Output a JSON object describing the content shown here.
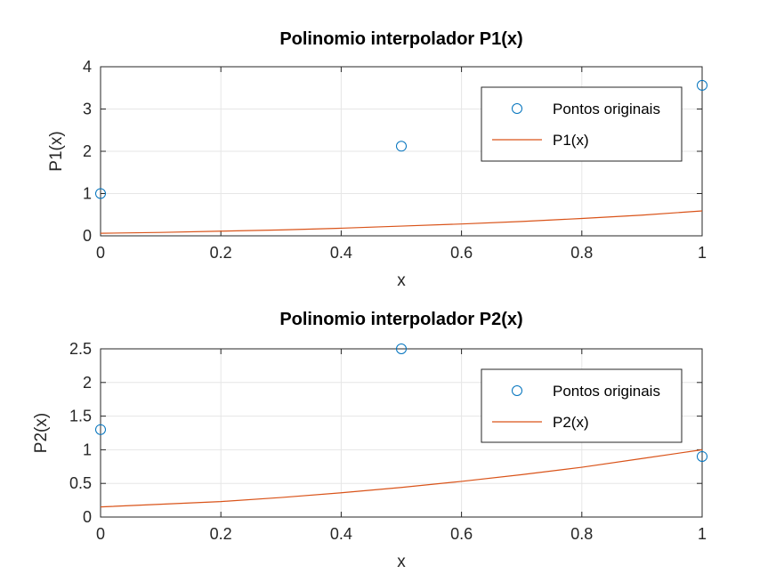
{
  "chart_data": [
    {
      "type": "line",
      "title": "Polinomio interpolador P1(x)",
      "xlabel": "x",
      "ylabel": "P1(x)",
      "xlim": [
        0,
        1
      ],
      "ylim": [
        0,
        4
      ],
      "xticks": [
        0,
        0.2,
        0.4,
        0.6,
        0.8,
        1
      ],
      "xtick_labels": [
        "0",
        "0.2",
        "0.4",
        "0.6",
        "0.8",
        "1"
      ],
      "yticks": [
        0,
        1,
        2,
        3,
        4
      ],
      "ytick_labels": [
        "0",
        "1",
        "2",
        "3",
        "4"
      ],
      "grid": true,
      "legend_position": "top-right",
      "series": [
        {
          "name": "Pontos originais",
          "kind": "scatter",
          "marker": "circle",
          "color": "#0072BD",
          "x": [
            0,
            0.5,
            1
          ],
          "y": [
            1.0,
            2.12,
            3.56
          ]
        },
        {
          "name": "P1(x)",
          "kind": "line",
          "color": "#D95319",
          "x": [
            0,
            0.1,
            0.2,
            0.3,
            0.4,
            0.5,
            0.6,
            0.7,
            0.8,
            0.9,
            1.0
          ],
          "y": [
            0.06,
            0.08,
            0.11,
            0.14,
            0.18,
            0.23,
            0.28,
            0.34,
            0.41,
            0.49,
            0.59
          ]
        }
      ]
    },
    {
      "type": "line",
      "title": "Polinomio interpolador P2(x)",
      "xlabel": "x",
      "ylabel": "P2(x)",
      "xlim": [
        0,
        1
      ],
      "ylim": [
        0,
        2.5
      ],
      "xticks": [
        0,
        0.2,
        0.4,
        0.6,
        0.8,
        1
      ],
      "xtick_labels": [
        "0",
        "0.2",
        "0.4",
        "0.6",
        "0.8",
        "1"
      ],
      "yticks": [
        0,
        0.5,
        1,
        1.5,
        2,
        2.5
      ],
      "ytick_labels": [
        "0",
        "0.5",
        "1",
        "1.5",
        "2",
        "2.5"
      ],
      "grid": true,
      "legend_position": "top-right",
      "series": [
        {
          "name": "Pontos originais",
          "kind": "scatter",
          "marker": "circle",
          "color": "#0072BD",
          "x": [
            0,
            0.5,
            1
          ],
          "y": [
            1.3,
            2.5,
            0.9
          ]
        },
        {
          "name": "P2(x)",
          "kind": "line",
          "color": "#D95319",
          "x": [
            0,
            0.1,
            0.2,
            0.3,
            0.4,
            0.5,
            0.6,
            0.7,
            0.8,
            0.9,
            1.0
          ],
          "y": [
            0.15,
            0.19,
            0.23,
            0.29,
            0.36,
            0.44,
            0.53,
            0.63,
            0.74,
            0.87,
            1.0
          ]
        }
      ]
    }
  ]
}
